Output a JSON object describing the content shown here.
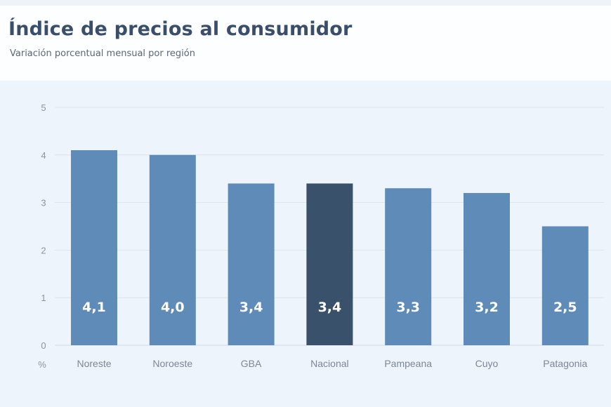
{
  "colors": {
    "bar": "#5f8bb8",
    "highlight": "#3a516b",
    "grid": "#d6e0ec",
    "plot_bg": "#eef4fb"
  },
  "chart_data": {
    "type": "bar",
    "title": "Índice de precios al consumidor",
    "subtitle": "Variación porcentual mensual por región",
    "ylabel": "%",
    "xlabel": "",
    "ylim": [
      0,
      5
    ],
    "yticks": [
      0,
      1,
      2,
      3,
      4,
      5
    ],
    "grid": true,
    "categories": [
      "Noreste",
      "Noroeste",
      "GBA",
      "Nacional",
      "Pampeana",
      "Cuyo",
      "Patagonia"
    ],
    "values": [
      4.1,
      4.0,
      3.4,
      3.4,
      3.3,
      3.2,
      2.5
    ],
    "value_labels": [
      "4,1",
      "4,0",
      "3,4",
      "3,4",
      "3,3",
      "3,2",
      "2,5"
    ],
    "highlight_category": "Nacional"
  }
}
